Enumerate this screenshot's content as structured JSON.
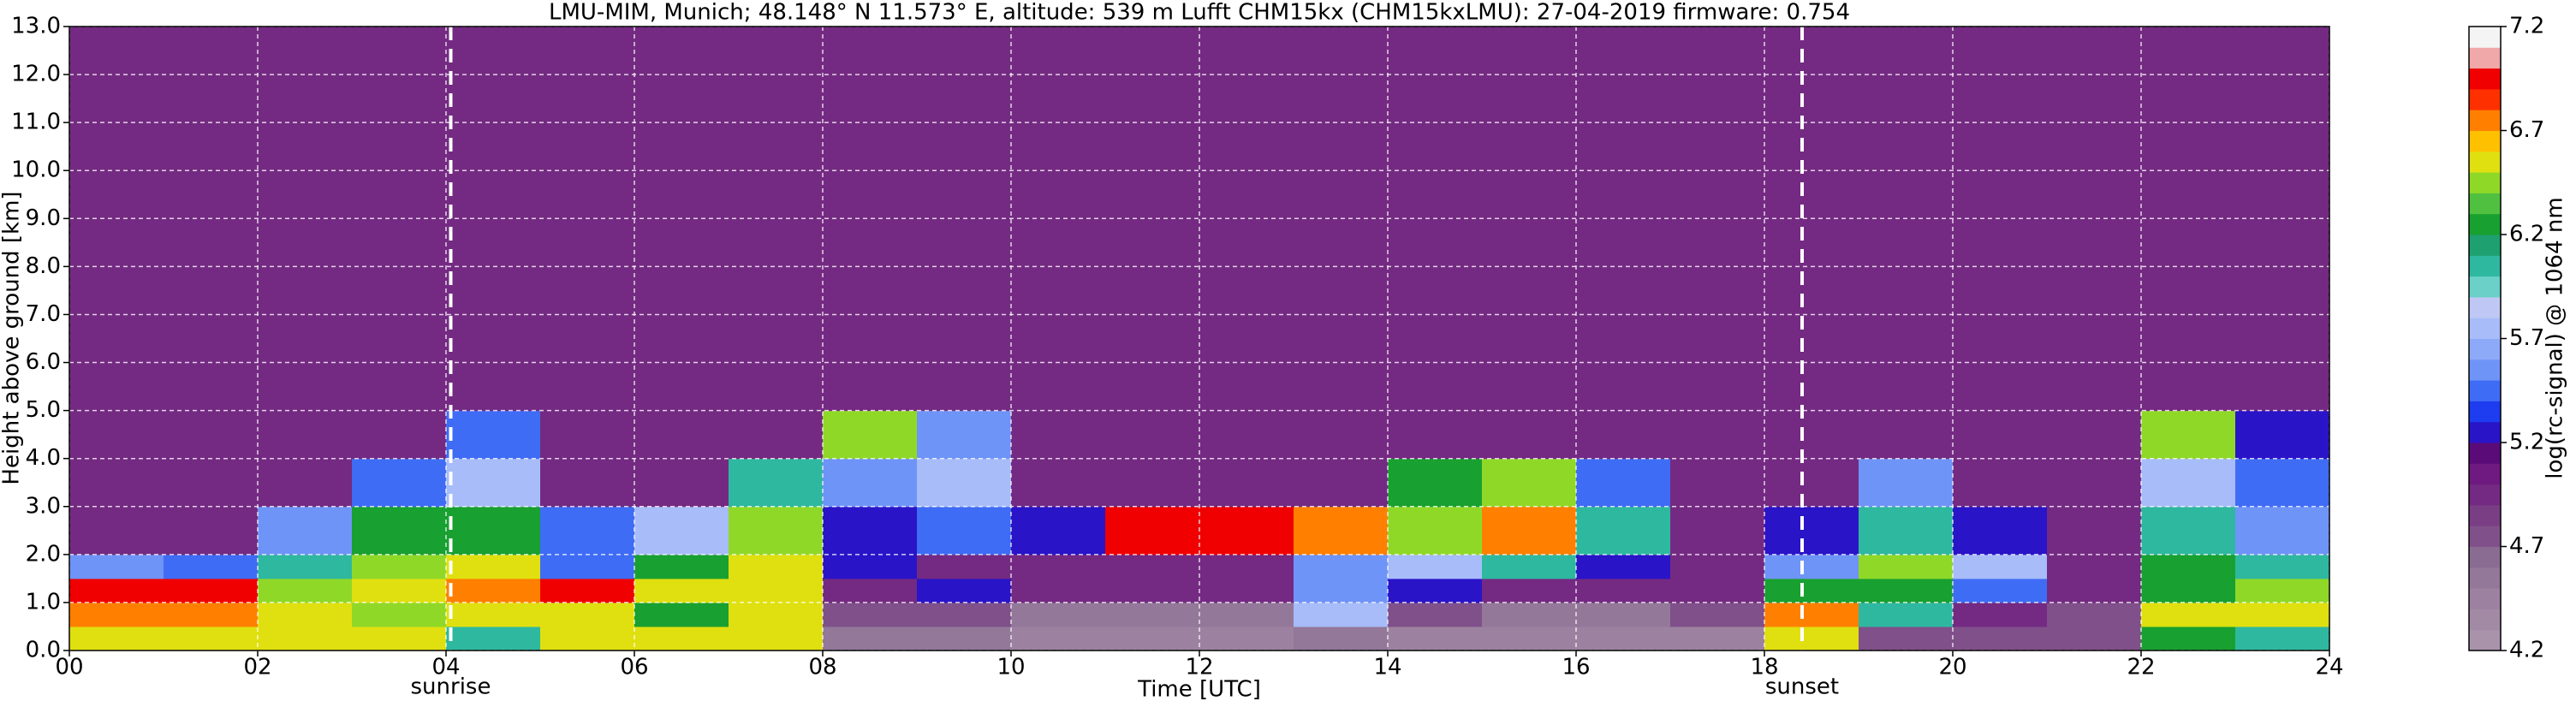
{
  "chart_data": {
    "type": "heatmap",
    "title": "LMU-MIM, Munich; 48.148° N 11.573° E, altitude: 539 m    Lufft CHM15kx (CHM15kxLMU): 27-04-2019    firmware: 0.754",
    "xlabel": "Time [UTC]",
    "ylabel": "Height above ground [km]",
    "colorbar_label": "log(rc-signal) @ 1064 nm",
    "xlim": [
      0,
      24
    ],
    "ylim": [
      0,
      13
    ],
    "xticks": [
      {
        "value": 0,
        "label": "00"
      },
      {
        "value": 2,
        "label": "02"
      },
      {
        "value": 4,
        "label": "04"
      },
      {
        "value": 6,
        "label": "06"
      },
      {
        "value": 8,
        "label": "08"
      },
      10,
      12,
      14,
      16,
      18,
      20,
      22,
      24
    ],
    "yticks": [
      {
        "value": 0,
        "label": "0.0"
      },
      {
        "value": 1,
        "label": "1.0"
      },
      {
        "value": 2,
        "label": "2.0"
      },
      {
        "value": 3,
        "label": "3.0"
      },
      {
        "value": 4,
        "label": "4.0"
      },
      {
        "value": 5,
        "label": "5.0"
      },
      {
        "value": 6,
        "label": "6.0"
      },
      {
        "value": 7,
        "label": "7.0"
      },
      {
        "value": 8,
        "label": "8.0"
      },
      {
        "value": 9,
        "label": "9.0"
      },
      {
        "value": 10,
        "label": "10.0"
      },
      {
        "value": 11,
        "label": "11.0"
      },
      {
        "value": 12,
        "label": "12.0"
      },
      {
        "value": 13,
        "label": "13.0"
      }
    ],
    "grid": true,
    "zlim": [
      4.2,
      7.2
    ],
    "zticks": [
      4.2,
      4.7,
      5.2,
      5.7,
      6.2,
      6.7,
      7.2
    ],
    "colors": [
      "#a993ab",
      "#a28aa5",
      "#9c82a0",
      "#93789a",
      "#8a6c93",
      "#80508a",
      "#7a3e85",
      "#742a82",
      "#6e1a80",
      "#5a0b78",
      "#2a14c8",
      "#1e3cf0",
      "#3f6cf5",
      "#6f94f8",
      "#8caaf8",
      "#a7bcf8",
      "#bfc8f5",
      "#6ad0c8",
      "#2fb8a0",
      "#1fa070",
      "#18a030",
      "#50c040",
      "#90d828",
      "#e0e010",
      "#ffc000",
      "#ff8000",
      "#ff3000",
      "#f00000",
      "#f0a8a8",
      "#f4f4f4"
    ],
    "x_edges": [
      0,
      1,
      2,
      3,
      4,
      5,
      6,
      7,
      8,
      9,
      10,
      11,
      12,
      13,
      14,
      15,
      16,
      17,
      18,
      19,
      20,
      21,
      22,
      23,
      24
    ],
    "y_edges": [
      0,
      0.5,
      1,
      1.5,
      2,
      3,
      4,
      5,
      13
    ],
    "z": [
      [
        6.6,
        6.6,
        6.6,
        6.5,
        6.0,
        6.5,
        6.6,
        6.6,
        4.6,
        4.6,
        4.5,
        4.4,
        4.4,
        4.6,
        4.5,
        4.4,
        4.4,
        4.4,
        6.5,
        4.8,
        4.7,
        4.7,
        6.2,
        6.0
      ],
      [
        6.8,
        6.7,
        6.5,
        6.4,
        6.6,
        6.5,
        6.3,
        6.5,
        4.7,
        4.8,
        4.6,
        4.6,
        4.6,
        5.8,
        4.7,
        4.6,
        4.6,
        4.7,
        6.8,
        6.0,
        5.0,
        4.8,
        6.5,
        6.6
      ],
      [
        7.0,
        6.9,
        6.4,
        6.6,
        6.8,
        7.0,
        6.5,
        6.6,
        5.0,
        5.2,
        5.0,
        4.9,
        4.9,
        5.6,
        5.2,
        5.0,
        5.0,
        5.0,
        6.2,
        6.3,
        5.5,
        4.9,
        6.3,
        6.4
      ],
      [
        5.6,
        5.4,
        6.0,
        6.4,
        6.6,
        5.5,
        6.2,
        6.6,
        5.2,
        5.0,
        5.0,
        5.0,
        5.0,
        5.6,
        5.8,
        6.0,
        5.2,
        5.0,
        5.6,
        6.4,
        5.8,
        5.0,
        6.2,
        6.0
      ],
      [
        5.0,
        5.0,
        5.6,
        6.3,
        6.2,
        5.4,
        5.8,
        6.4,
        5.2,
        5.4,
        5.3,
        7.0,
        7.0,
        6.8,
        6.4,
        6.7,
        6.0,
        5.0,
        5.2,
        6.0,
        5.2,
        5.0,
        6.0,
        5.6
      ],
      [
        5.0,
        5.0,
        5.0,
        5.4,
        5.8,
        5.0,
        5.0,
        6.0,
        5.6,
        5.8,
        5.0,
        5.0,
        5.0,
        5.0,
        6.2,
        6.4,
        5.4,
        5.0,
        5.0,
        5.6,
        5.0,
        5.0,
        5.8,
        5.4
      ],
      [
        5.0,
        5.0,
        5.0,
        5.0,
        5.4,
        5.0,
        5.0,
        5.0,
        6.4,
        5.6,
        5.0,
        5.0,
        5.0,
        5.0,
        5.0,
        5.0,
        5.0,
        5.0,
        5.0,
        5.0,
        5.0,
        5.0,
        6.4,
        5.2
      ],
      [
        5.0,
        5.0,
        5.0,
        5.0,
        5.0,
        5.0,
        5.0,
        5.0,
        5.0,
        5.0,
        5.0,
        5.0,
        5.0,
        5.0,
        5.0,
        5.0,
        5.0,
        5.0,
        5.0,
        5.0,
        5.0,
        5.0,
        5.0,
        5.0
      ]
    ],
    "annotations": [
      {
        "x": 4.05,
        "text": "sunrise"
      },
      {
        "x": 18.4,
        "text": "sunset"
      }
    ]
  }
}
